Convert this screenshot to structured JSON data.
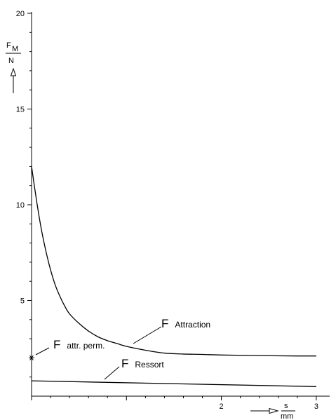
{
  "chart_data": {
    "type": "line",
    "x_range": [
      0,
      3
    ],
    "y_range": [
      0,
      20
    ],
    "y_axis": {
      "label_top": "F",
      "label_top_sub": "M",
      "label_bottom": "N",
      "tick_labels": [
        {
          "value": 5,
          "text": "5"
        },
        {
          "value": 10,
          "text": "10"
        },
        {
          "value": 15,
          "text": "15"
        },
        {
          "value": 20,
          "text": "20"
        }
      ],
      "minor_step": 1
    },
    "x_axis": {
      "label_top": "s",
      "label_bottom": "mm",
      "tick_labels": [
        {
          "value": 2,
          "text": "2"
        },
        {
          "value": 3,
          "text": "3"
        }
      ],
      "minor_step": 0.2
    },
    "grid": false,
    "legend": "none",
    "series": [
      {
        "name": "Attraction",
        "x": [
          0,
          0.05,
          0.1,
          0.15,
          0.2,
          0.25,
          0.3,
          0.35,
          0.4,
          0.5,
          0.6,
          0.7,
          0.8,
          0.9,
          1.0,
          1.2,
          1.4,
          1.6,
          1.8,
          2.0,
          2.4,
          2.8,
          3.0
        ],
        "y": [
          12,
          10.3,
          8.8,
          7.6,
          6.6,
          5.8,
          5.2,
          4.7,
          4.3,
          3.8,
          3.4,
          3.1,
          2.9,
          2.75,
          2.6,
          2.4,
          2.25,
          2.2,
          2.18,
          2.15,
          2.12,
          2.1,
          2.1
        ]
      },
      {
        "name": "Ressort",
        "x": [
          0,
          3.0
        ],
        "y": [
          0.8,
          0.5
        ]
      }
    ],
    "annotations": [
      {
        "big": "F",
        "sub": "Attraction"
      },
      {
        "big": "F",
        "sub": "Ressort"
      },
      {
        "big": "F",
        "sub": "attr. perm.",
        "marker_x": 0,
        "marker_y": 2
      }
    ]
  }
}
